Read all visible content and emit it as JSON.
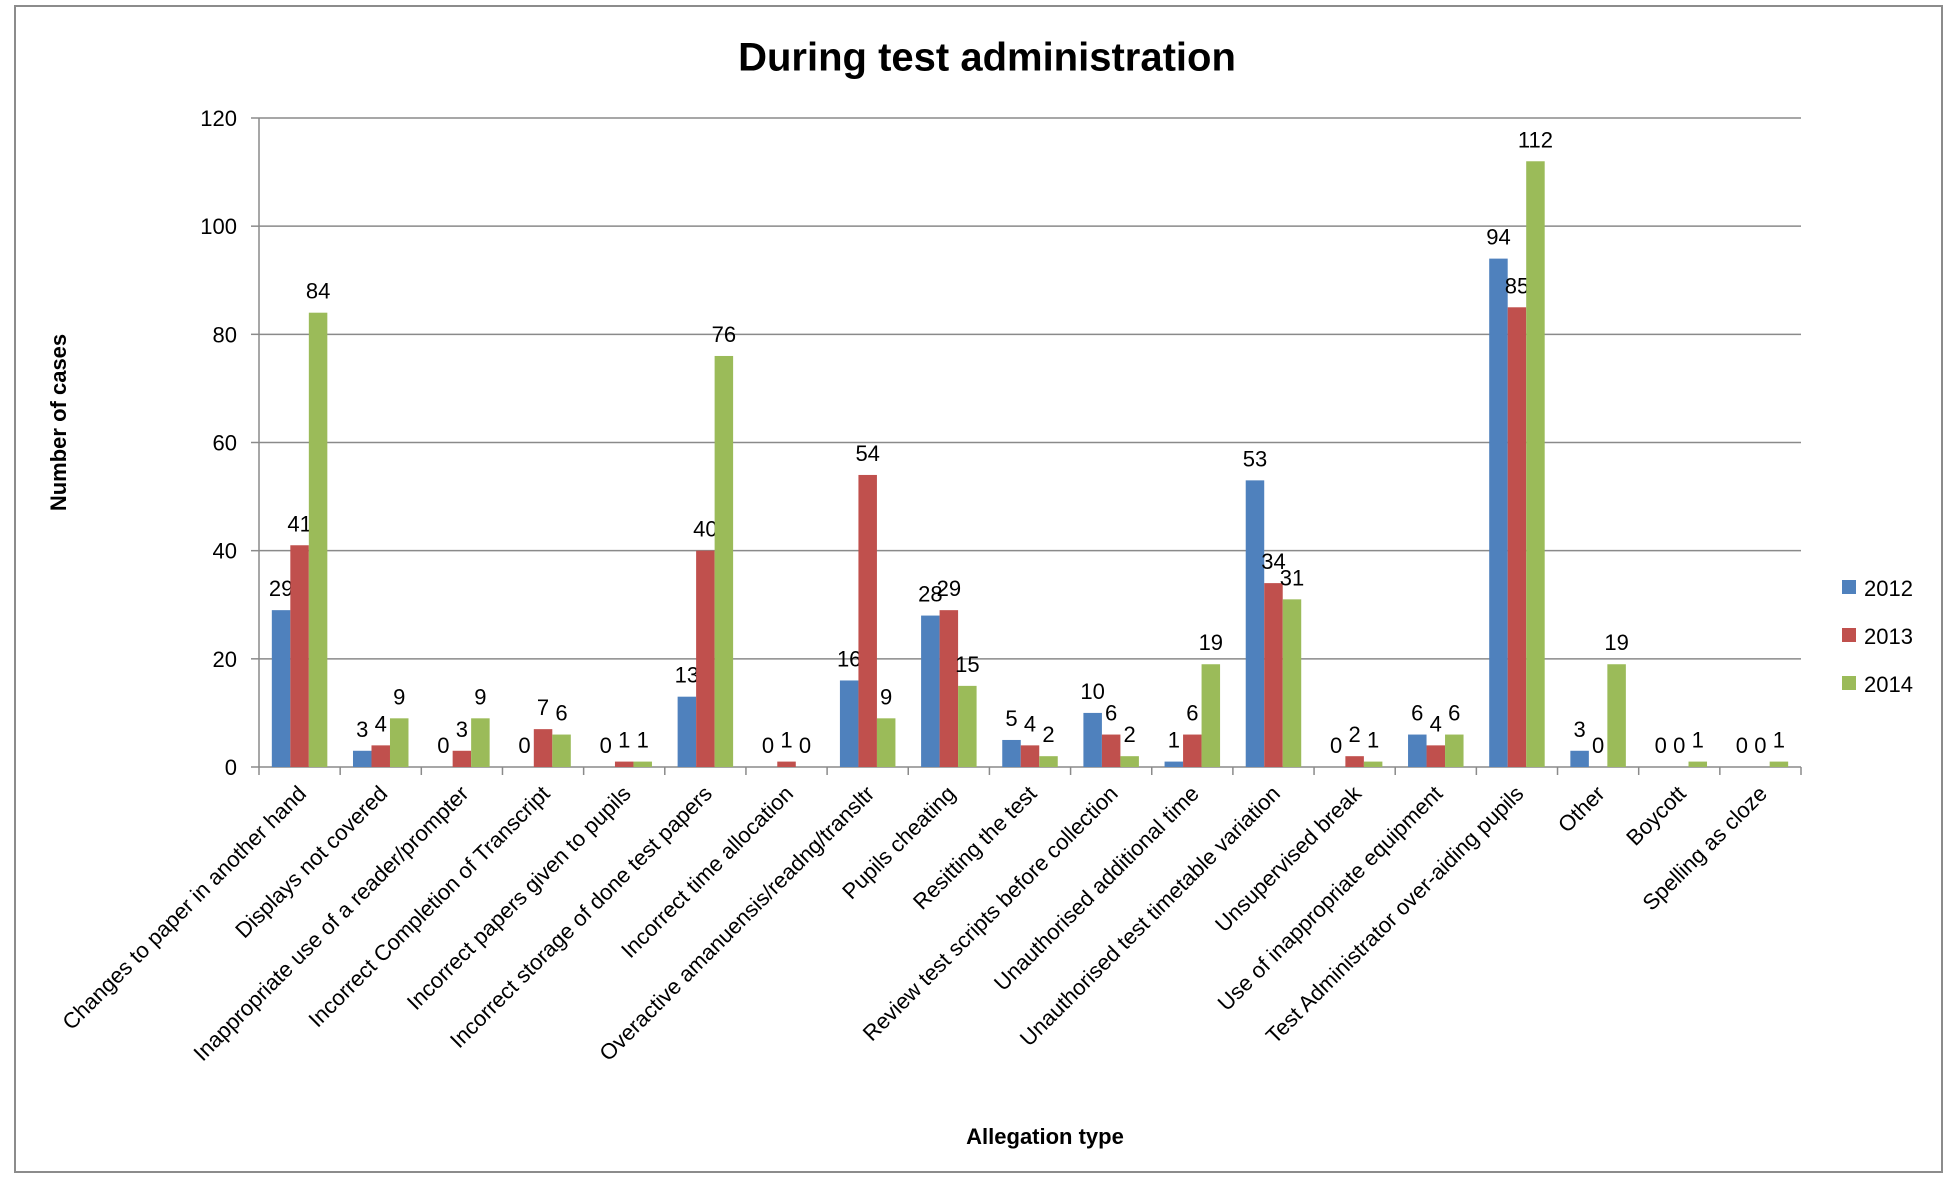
{
  "chart_data": {
    "type": "bar",
    "title": "During test administration",
    "xlabel": "Allegation type",
    "ylabel": "Number of cases",
    "ylim": [
      0,
      120
    ],
    "yticks": [
      0,
      20,
      40,
      60,
      80,
      100,
      120
    ],
    "grid": true,
    "legend_position": "right",
    "categories": [
      "Changes to paper in another hand",
      "Displays not covered",
      "Inappropriate use of a reader/prompter",
      "Incorrect Completion of Transcript",
      "Incorrect papers given to pupils",
      "Incorrect storage of done test papers",
      "Incorrect time allocation",
      "Overactive amanuensis/readng/transltr",
      "Pupils cheating",
      "Resitting the test",
      "Review test scripts before collection",
      "Unauthorised additional time",
      "Unauthorised test timetable variation",
      "Unsupervised break",
      "Use of inappropriate equipment",
      "Test Administrator over-aiding pupils",
      "Other",
      "Boycott",
      "Spelling as cloze"
    ],
    "series": [
      {
        "name": "2012",
        "color": "#4f81bd",
        "values": [
          29,
          3,
          0,
          0,
          0,
          13,
          0,
          16,
          28,
          5,
          10,
          1,
          53,
          0,
          6,
          94,
          3,
          0,
          0
        ],
        "labels": [
          "29",
          "3",
          "0",
          "0",
          "0",
          "13",
          "0",
          "16",
          "28",
          "5",
          "10",
          "1",
          "53",
          "0",
          "6",
          "94",
          "3",
          "0",
          "0"
        ]
      },
      {
        "name": "2013",
        "color": "#c0504d",
        "values": [
          41,
          4,
          3,
          7,
          1,
          40,
          1,
          54,
          29,
          4,
          6,
          6,
          34,
          2,
          4,
          85,
          0,
          0,
          0
        ],
        "labels": [
          "41",
          "4",
          "3",
          "7",
          "1",
          "40",
          "1",
          "54",
          "29",
          "4",
          "6",
          "6",
          "34",
          "2",
          "4",
          "85",
          "0",
          "0",
          "0"
        ]
      },
      {
        "name": "2014",
        "color": "#9bbb59",
        "values": [
          84,
          9,
          9,
          6,
          1,
          76,
          0,
          9,
          15,
          2,
          2,
          19,
          31,
          1,
          6,
          112,
          19,
          1,
          1
        ],
        "labels": [
          "84",
          "9",
          "9",
          "6",
          "1",
          "76",
          "0",
          "9",
          "15",
          "2",
          "2",
          "19",
          "31",
          "1",
          "6",
          "112",
          "19",
          "1",
          "1"
        ]
      }
    ]
  }
}
